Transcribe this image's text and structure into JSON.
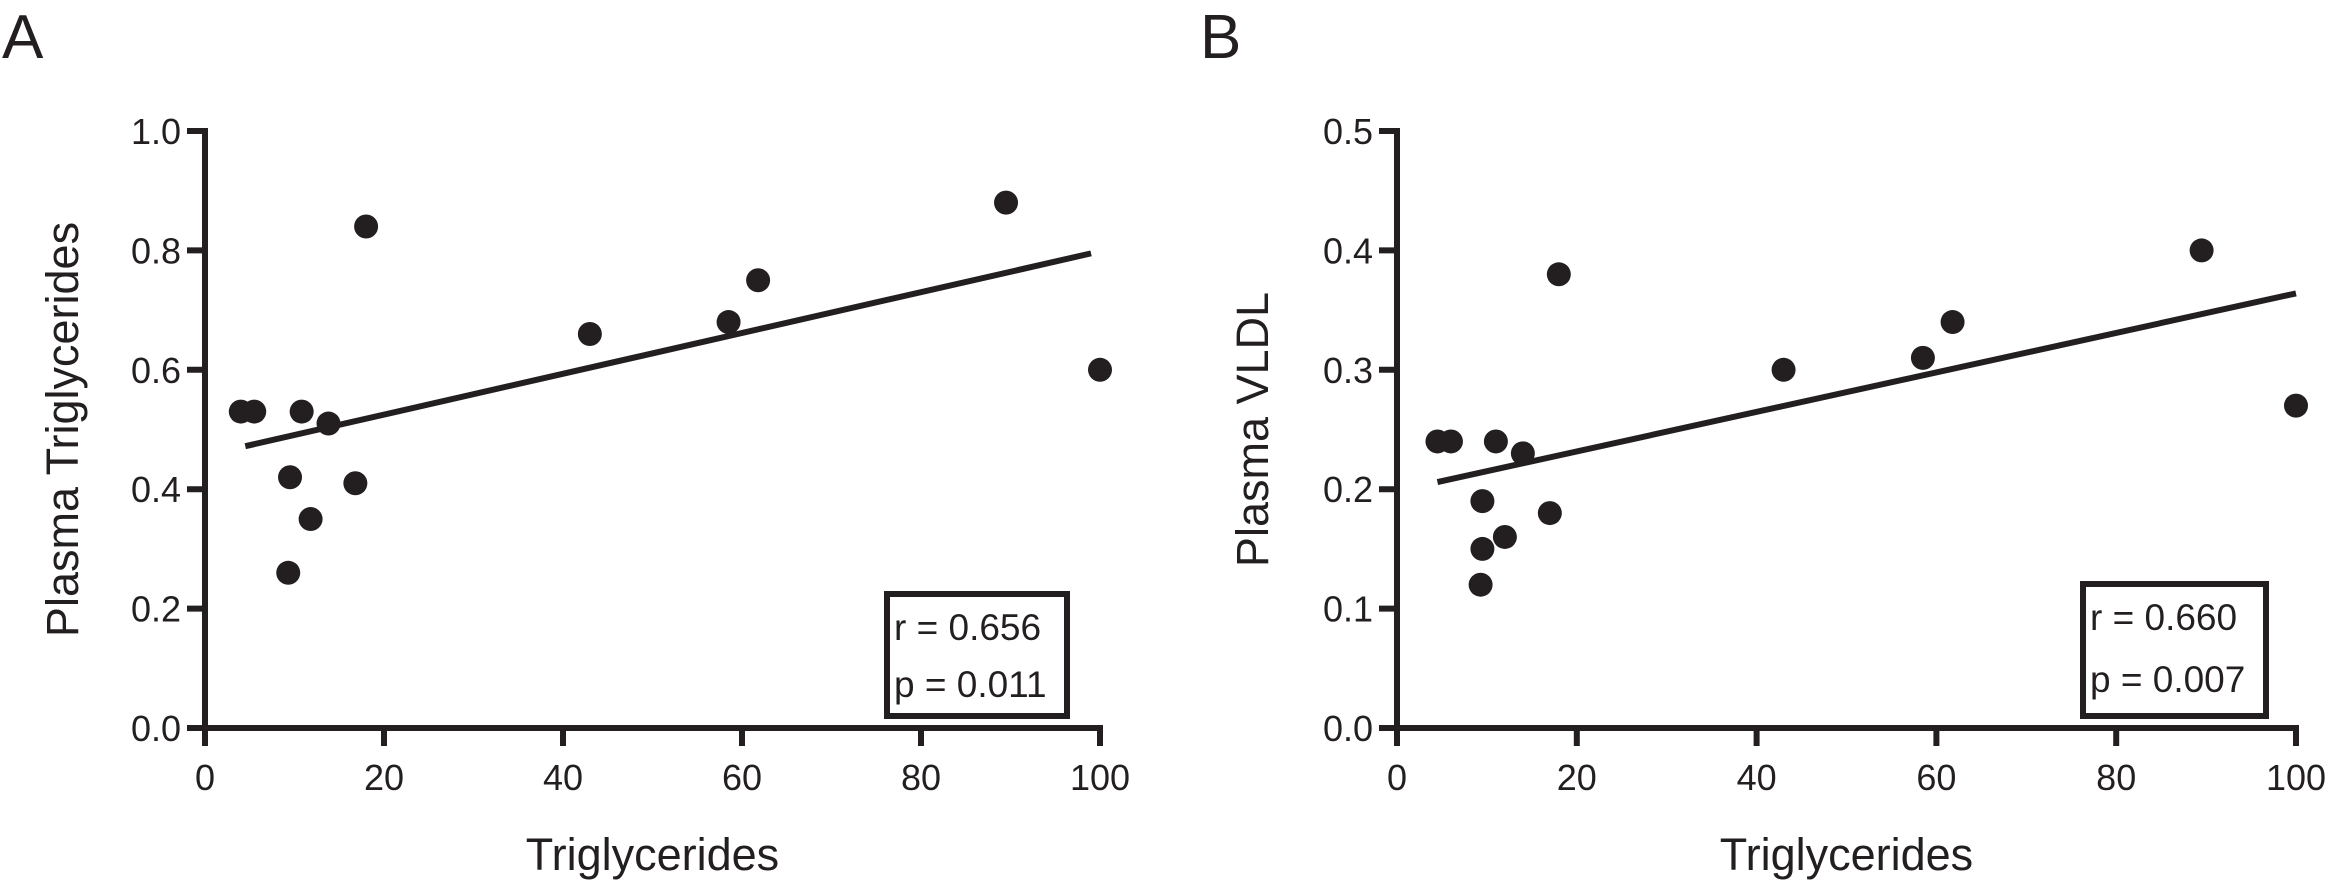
{
  "chart_data": [
    {
      "type": "scatter",
      "panel_label": "A",
      "xlabel": "Triglycerides",
      "ylabel": "Plasma Triglycerides",
      "xlim": [
        0,
        100
      ],
      "ylim": [
        0,
        1.0
      ],
      "xticks": [
        "0",
        "20",
        "40",
        "60",
        "80",
        "100"
      ],
      "xtick_values": [
        0,
        20,
        40,
        60,
        80,
        100
      ],
      "yticks": [
        "0.0",
        "0.2",
        "0.4",
        "0.6",
        "0.8",
        "1.0"
      ],
      "ytick_values": [
        0,
        0.2,
        0.4,
        0.6,
        0.8,
        1.0
      ],
      "grid": false,
      "points": [
        {
          "x": 4,
          "y": 0.53
        },
        {
          "x": 5.5,
          "y": 0.53
        },
        {
          "x": 9.5,
          "y": 0.42
        },
        {
          "x": 9.3,
          "y": 0.26
        },
        {
          "x": 10.8,
          "y": 0.53
        },
        {
          "x": 11.8,
          "y": 0.35
        },
        {
          "x": 13.8,
          "y": 0.51
        },
        {
          "x": 16.8,
          "y": 0.41
        },
        {
          "x": 18,
          "y": 0.84
        },
        {
          "x": 43,
          "y": 0.66
        },
        {
          "x": 58.5,
          "y": 0.68
        },
        {
          "x": 61.8,
          "y": 0.75
        },
        {
          "x": 89.5,
          "y": 0.88
        },
        {
          "x": 100,
          "y": 0.6
        }
      ],
      "fit_line": {
        "x": [
          4.5,
          99
        ],
        "y": [
          0.472,
          0.795
        ]
      },
      "stats": [
        "r = 0.656",
        "p = 0.011"
      ],
      "stats_placement": "bottom-right"
    },
    {
      "type": "scatter",
      "panel_label": "B",
      "xlabel": "Triglycerides",
      "ylabel": "Plasma VLDL",
      "xlim": [
        0,
        100
      ],
      "ylim": [
        0,
        0.5
      ],
      "xticks": [
        "0",
        "20",
        "40",
        "60",
        "80",
        "100"
      ],
      "xtick_values": [
        0,
        20,
        40,
        60,
        80,
        100
      ],
      "yticks": [
        "0.0",
        "0.1",
        "0.2",
        "0.3",
        "0.4",
        "0.5"
      ],
      "ytick_values": [
        0,
        0.1,
        0.2,
        0.3,
        0.4,
        0.5
      ],
      "grid": false,
      "points": [
        {
          "x": 4.5,
          "y": 0.24
        },
        {
          "x": 6,
          "y": 0.24
        },
        {
          "x": 9.5,
          "y": 0.19
        },
        {
          "x": 9.5,
          "y": 0.15
        },
        {
          "x": 9.3,
          "y": 0.12
        },
        {
          "x": 11,
          "y": 0.24
        },
        {
          "x": 12,
          "y": 0.16
        },
        {
          "x": 14,
          "y": 0.23
        },
        {
          "x": 17,
          "y": 0.18
        },
        {
          "x": 18,
          "y": 0.38
        },
        {
          "x": 43,
          "y": 0.3
        },
        {
          "x": 58.5,
          "y": 0.31
        },
        {
          "x": 61.8,
          "y": 0.34
        },
        {
          "x": 89.5,
          "y": 0.4
        },
        {
          "x": 100,
          "y": 0.27
        }
      ],
      "fit_line": {
        "x": [
          4.5,
          100
        ],
        "y": [
          0.206,
          0.364
        ]
      },
      "stats": [
        "r = 0.660",
        "p = 0.007"
      ],
      "stats_placement": "bottom-right"
    }
  ]
}
